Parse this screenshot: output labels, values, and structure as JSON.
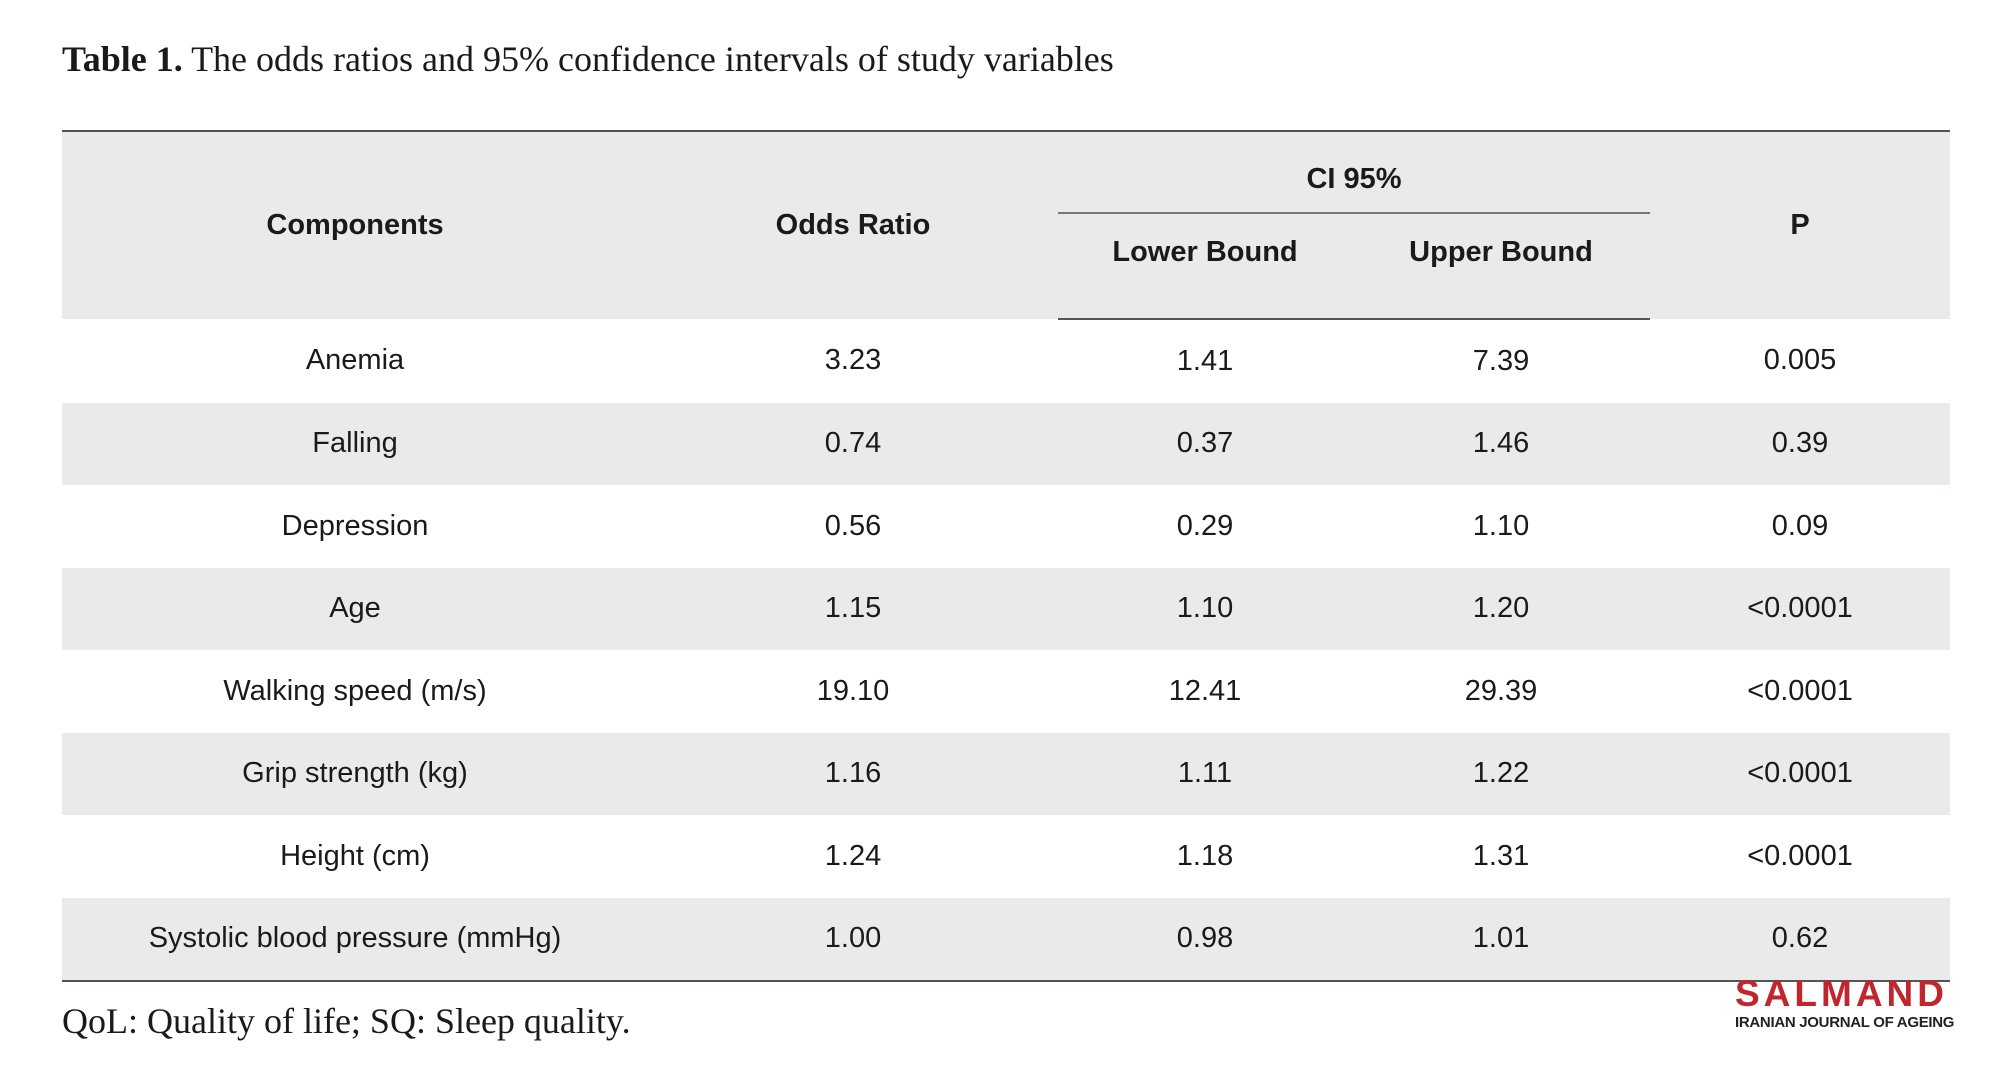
{
  "caption": {
    "label": "Table 1.",
    "text": " The odds ratios and 95% confidence intervals of study variables"
  },
  "table": {
    "headers": {
      "components": "Components",
      "odds_ratio": "Odds Ratio",
      "ci_group": "CI 95%",
      "lower_bound": "Lower Bound",
      "upper_bound": "Upper Bound",
      "p": "P"
    },
    "rows": [
      {
        "component": "Anemia",
        "odds_ratio": "3.23",
        "lower": "1.41",
        "upper": "7.39",
        "p": "0.005"
      },
      {
        "component": "Falling",
        "odds_ratio": "0.74",
        "lower": "0.37",
        "upper": "1.46",
        "p": "0.39"
      },
      {
        "component": "Depression",
        "odds_ratio": "0.56",
        "lower": "0.29",
        "upper": "1.10",
        "p": "0.09"
      },
      {
        "component": "Age",
        "odds_ratio": "1.15",
        "lower": "1.10",
        "upper": "1.20",
        "p": "<0.0001"
      },
      {
        "component": "Walking speed (m/s)",
        "odds_ratio": "19.10",
        "lower": "12.41",
        "upper": "29.39",
        "p": "<0.0001"
      },
      {
        "component": "Grip strength (kg)",
        "odds_ratio": "1.16",
        "lower": "1.11",
        "upper": "1.22",
        "p": "<0.0001"
      },
      {
        "component": "Height (cm)",
        "odds_ratio": "1.24",
        "lower": "1.18",
        "upper": "1.31",
        "p": "<0.0001"
      },
      {
        "component": "Systolic blood pressure (mmHg)",
        "odds_ratio": "1.00",
        "lower": "0.98",
        "upper": "1.01",
        "p": "0.62"
      }
    ]
  },
  "footnote": "QoL: Quality of life; SQ: Sleep quality.",
  "logo": {
    "name": "SALMAND",
    "subtitle": "IRANIAN JOURNAL OF AGEING"
  },
  "colors": {
    "header_bg": "#e9eaec",
    "stripe_bg": "#e9eaec",
    "logo_red": "#c0262c"
  }
}
